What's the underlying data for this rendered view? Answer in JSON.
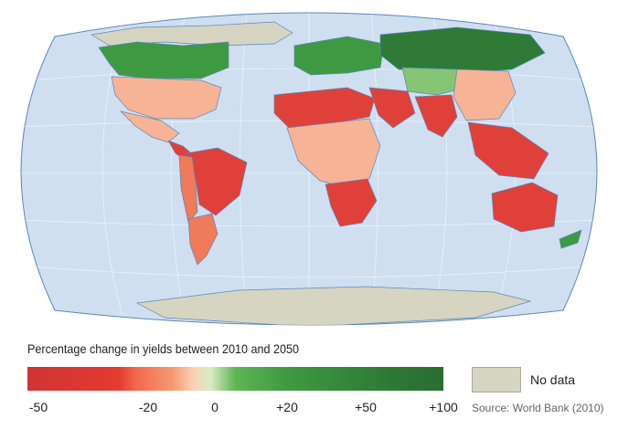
{
  "legend": {
    "title": "Percentage change in yields between 2010 and 2050",
    "ticks": [
      "-50",
      "-20",
      "0",
      "+20",
      "+50",
      "+100"
    ],
    "no_data_label": "No data",
    "source": "Source: World Bank (2010)"
  },
  "colors": {
    "ocean": "#cfdff0",
    "coast": "#5b87b9",
    "no_data": "#d6d5c2",
    "strong_loss": "#e0403a",
    "moderate_loss": "#f07a5a",
    "slight_loss": "#f6b396",
    "neutral": "#e9efd6",
    "slight_gain": "#86c476",
    "gain": "#3e9a42",
    "strong_gain": "#2e7a36"
  },
  "regions": [
    {
      "name": "Greenland / Arctic",
      "class": "no_data"
    },
    {
      "name": "Canada",
      "class": "gain"
    },
    {
      "name": "United States",
      "class": "slight_loss"
    },
    {
      "name": "Mexico",
      "class": "slight_loss"
    },
    {
      "name": "Central America",
      "class": "strong_loss"
    },
    {
      "name": "Brazil",
      "class": "strong_loss"
    },
    {
      "name": "Andean South America",
      "class": "moderate_loss"
    },
    {
      "name": "Southern Cone",
      "class": "moderate_loss"
    },
    {
      "name": "Europe",
      "class": "gain"
    },
    {
      "name": "Russia",
      "class": "strong_gain"
    },
    {
      "name": "North Africa",
      "class": "strong_loss"
    },
    {
      "name": "Sub-Saharan Africa",
      "class": "slight_loss"
    },
    {
      "name": "Southern Africa",
      "class": "strong_loss"
    },
    {
      "name": "Middle East",
      "class": "strong_loss"
    },
    {
      "name": "Central Asia",
      "class": "slight_gain"
    },
    {
      "name": "South Asia",
      "class": "strong_loss"
    },
    {
      "name": "China",
      "class": "slight_loss"
    },
    {
      "name": "Southeast Asia",
      "class": "strong_loss"
    },
    {
      "name": "Australia",
      "class": "strong_loss"
    },
    {
      "name": "New Zealand",
      "class": "gain"
    },
    {
      "name": "Antarctica",
      "class": "no_data"
    }
  ]
}
